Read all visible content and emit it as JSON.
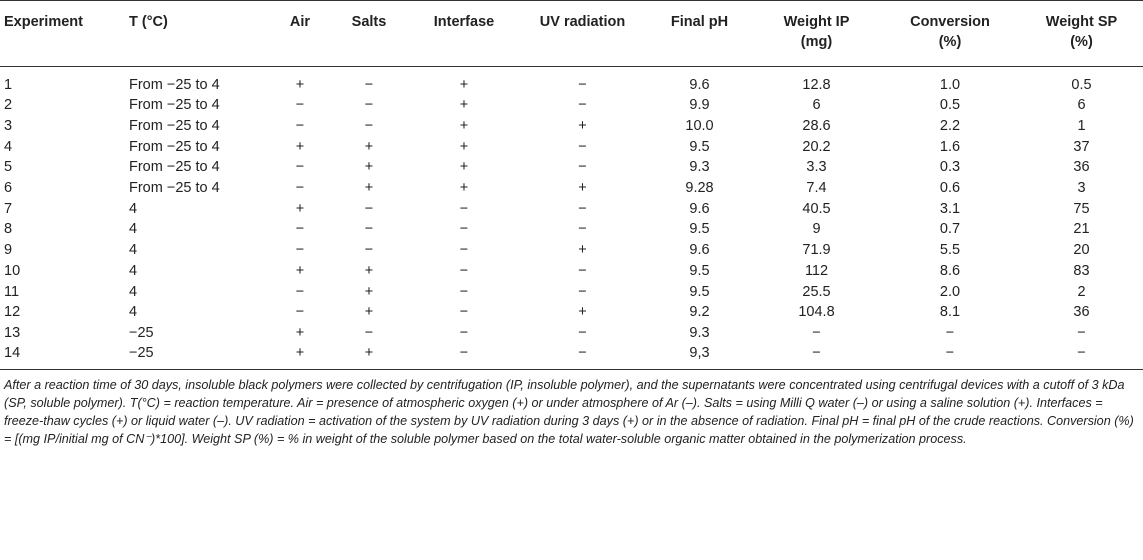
{
  "table": {
    "headers": [
      {
        "line1": "Experiment",
        "line2": ""
      },
      {
        "line1": "T (°C)",
        "line2": ""
      },
      {
        "line1": "Air",
        "line2": ""
      },
      {
        "line1": "Salts",
        "line2": ""
      },
      {
        "line1": "Interfase",
        "line2": ""
      },
      {
        "line1": "UV radiation",
        "line2": ""
      },
      {
        "line1": "Final pH",
        "line2": ""
      },
      {
        "line1": "Weight IP",
        "line2": "(mg)"
      },
      {
        "line1": "Conversion",
        "line2": "(%)"
      },
      {
        "line1": "Weight SP",
        "line2": "(%)"
      }
    ],
    "rows": [
      [
        "1",
        "From −25 to 4",
        "+",
        "−",
        "+",
        "−",
        "9.6",
        "12.8",
        "1.0",
        "0.5"
      ],
      [
        "2",
        "From −25 to 4",
        "−",
        "−",
        "+",
        "−",
        "9.9",
        "6",
        "0.5",
        "6"
      ],
      [
        "3",
        "From −25 to 4",
        "−",
        "−",
        "+",
        "+",
        "10.0",
        "28.6",
        "2.2",
        "1"
      ],
      [
        "4",
        "From −25 to 4",
        "+",
        "+",
        "+",
        "−",
        "9.5",
        "20.2",
        "1.6",
        "37"
      ],
      [
        "5",
        "From −25 to 4",
        "−",
        "+",
        "+",
        "−",
        "9.3",
        "3.3",
        "0.3",
        "36"
      ],
      [
        "6",
        "From −25 to 4",
        "−",
        "+",
        "+",
        "+",
        "9.28",
        "7.4",
        "0.6",
        "3"
      ],
      [
        "7",
        "4",
        "+",
        "−",
        "−",
        "−",
        "9.6",
        "40.5",
        "3.1",
        "75"
      ],
      [
        "8",
        "4",
        "−",
        "−",
        "−",
        "−",
        "9.5",
        "9",
        "0.7",
        "21"
      ],
      [
        "9",
        "4",
        "−",
        "−",
        "−",
        "+",
        "9.6",
        "71.9",
        "5.5",
        "20"
      ],
      [
        "10",
        "4",
        "+",
        "+",
        "−",
        "−",
        "9.5",
        "112",
        "8.6",
        "83"
      ],
      [
        "11",
        "4",
        "−",
        "+",
        "−",
        "−",
        "9.5",
        "25.5",
        "2.0",
        "2"
      ],
      [
        "12",
        "4",
        "−",
        "+",
        "−",
        "+",
        "9.2",
        "104.8",
        "8.1",
        "36"
      ],
      [
        "13",
        "−25",
        "+",
        "−",
        "−",
        "−",
        "9.3",
        "−",
        "−",
        "−"
      ],
      [
        "14",
        "−25",
        "+",
        "+",
        "−",
        "−",
        "9,3",
        "−",
        "−",
        "−"
      ]
    ]
  },
  "footnote": "After a reaction time of 30 days, insoluble black polymers were collected by centrifugation (IP, insoluble polymer), and the supernatants were concentrated using centrifugal devices with a cutoff of 3 kDa (SP, soluble polymer). T(°C) = reaction temperature. Air = presence of atmospheric oxygen (+) or under atmosphere of Ar (–). Salts = using Milli Q water (–) or using a saline solution (+). Interfaces = freeze-thaw cycles (+) or liquid water (–). UV radiation = activation of the system by UV radiation during 3 days (+) or in the absence of radiation. Final pH = final pH of the crude reactions. Conversion (%) = [(mg IP/initial mg of CN⁻)*100]. Weight SP (%) = % in weight of the soluble polymer based on the total water-soluble organic matter obtained in the polymerization process."
}
